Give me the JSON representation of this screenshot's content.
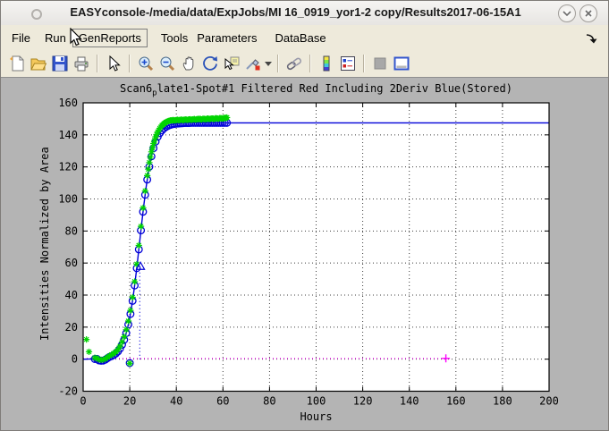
{
  "window": {
    "title": "EASYconsole-/media/data/ExpJobs/MI 16_0919_yor1-2 copy/Results2017-06-15A1",
    "controls": [
      "shade-button",
      "close-button"
    ]
  },
  "menu": {
    "items": [
      {
        "label": "File"
      },
      {
        "label": "Run"
      },
      {
        "label": "GenReports"
      },
      {
        "label": "Tools"
      },
      {
        "label": "Parameters"
      },
      {
        "label": "DataBase"
      }
    ],
    "active_item": "GenReports",
    "overflow_icon": "dock-arrow-icon"
  },
  "toolbar": {
    "icons": [
      "new-figure-icon",
      "open-file-icon",
      "save-icon",
      "print-icon",
      "pointer-icon",
      "zoom-in-icon",
      "zoom-out-icon",
      "pan-icon",
      "rotate-3d-icon",
      "data-cursor-icon",
      "brush-icon",
      "brush-dropdown-caret",
      "link-plots-icon",
      "colorbar-icon",
      "legend-icon",
      "hide-plot-tools-icon",
      "show-plot-tools-icon"
    ]
  },
  "figure": {
    "title_prefix": "Scan6",
    "title_sub": "p",
    "title_rest": "late1-Spot#1 Filtered Red Including 2Deriv Blue(Stored)"
  },
  "chart_data": {
    "type": "line",
    "title": "Scan6_plate1-Spot#1 Filtered Red Including 2Deriv Blue(Stored)",
    "xlabel": "Hours",
    "ylabel": "Intensities Normalized by Area",
    "xlim": [
      0,
      200
    ],
    "ylim": [
      -20,
      160
    ],
    "xticks": [
      0,
      20,
      40,
      60,
      80,
      100,
      120,
      140,
      160,
      180,
      200
    ],
    "yticks": [
      -20,
      0,
      20,
      40,
      60,
      80,
      100,
      120,
      140,
      160
    ],
    "grid": true,
    "legend_position": "none",
    "colors": {
      "fit": "#0000d8",
      "stars": "#00d400",
      "baseline": "#ff00ff",
      "grid": "#3c3c3c"
    },
    "series": [
      {
        "name": "baseline",
        "type": "line",
        "style": "dotted",
        "color": "#ff00ff",
        "width": 1.2,
        "points": [
          [
            0,
            0.5
          ],
          [
            155.7,
            0.5
          ]
        ]
      },
      {
        "name": "baseline-end",
        "type": "scatter",
        "marker": "plus",
        "color": "#ff00ff",
        "points": [
          [
            155.7,
            0.5
          ]
        ]
      },
      {
        "name": "inflection-vline",
        "type": "line",
        "style": "dotted",
        "color": "#0000d8",
        "width": 1.2,
        "points": [
          [
            24.3,
            0
          ],
          [
            24.3,
            57.5
          ]
        ]
      },
      {
        "name": "fit-line",
        "type": "line",
        "style": "solid",
        "color": "#0000d8",
        "width": 1.4,
        "points": [
          [
            0,
            0
          ],
          [
            6,
            0.2
          ],
          [
            9,
            0.6
          ],
          [
            11,
            1.2
          ],
          [
            13,
            2.5
          ],
          [
            15,
            5
          ],
          [
            16,
            7.1
          ],
          [
            17,
            9.9
          ],
          [
            18,
            13.8
          ],
          [
            19,
            19
          ],
          [
            20,
            25.9
          ],
          [
            21,
            34.5
          ],
          [
            22,
            44.8
          ],
          [
            23,
            56.8
          ],
          [
            24,
            69.8
          ],
          [
            25,
            83
          ],
          [
            26,
            95.6
          ],
          [
            27,
            107
          ],
          [
            28,
            116.7
          ],
          [
            29,
            124.6
          ],
          [
            30,
            130.7
          ],
          [
            31,
            135.4
          ],
          [
            32,
            138.8
          ],
          [
            33,
            141.3
          ],
          [
            34,
            143.1
          ],
          [
            35,
            144.4
          ],
          [
            36,
            145.3
          ],
          [
            37,
            146
          ],
          [
            38,
            146.5
          ],
          [
            40,
            147
          ],
          [
            42,
            147.3
          ],
          [
            45,
            147.4
          ],
          [
            50,
            147.5
          ],
          [
            200,
            147.5
          ]
        ]
      },
      {
        "name": "fit-circles",
        "type": "scatter",
        "marker": "circle",
        "color": "#0000d8",
        "points": [
          [
            5,
            0.1
          ],
          [
            5.9,
            0.2
          ],
          [
            6.8,
            -0.8
          ],
          [
            7.7,
            -1
          ],
          [
            8.6,
            -0.9
          ],
          [
            9.5,
            -0.3
          ],
          [
            10.4,
            0.6
          ],
          [
            11.3,
            1.4
          ],
          [
            12.2,
            1.9
          ],
          [
            13.1,
            2.6
          ],
          [
            14,
            3.5
          ],
          [
            14.9,
            4.8
          ],
          [
            15.8,
            6.6
          ],
          [
            16.7,
            9
          ],
          [
            17.6,
            12.1
          ],
          [
            18.5,
            16.3
          ],
          [
            19.4,
            21.6
          ],
          [
            20,
            -2.4
          ],
          [
            20.3,
            28.2
          ],
          [
            21.2,
            36.4
          ],
          [
            22.1,
            46
          ],
          [
            23,
            56.8
          ],
          [
            23.9,
            68.5
          ],
          [
            24.8,
            80.4
          ],
          [
            25.7,
            92
          ],
          [
            26.6,
            102.6
          ],
          [
            27.5,
            112.1
          ],
          [
            28.4,
            120.1
          ],
          [
            29.3,
            126.6
          ],
          [
            30.2,
            131.7
          ],
          [
            31.1,
            135.8
          ],
          [
            32,
            138.8
          ],
          [
            32.9,
            141.1
          ],
          [
            33.8,
            142.8
          ],
          [
            34.7,
            144.1
          ],
          [
            35.6,
            145
          ],
          [
            36.5,
            145.7
          ],
          [
            37.4,
            146.2
          ],
          [
            38.3,
            146.6
          ],
          [
            39.2,
            146.8
          ],
          [
            40.1,
            147
          ],
          [
            41,
            147.1
          ],
          [
            41.9,
            147.2
          ],
          [
            42.8,
            147.3
          ],
          [
            43.7,
            147.4
          ],
          [
            44.6,
            147.4
          ],
          [
            45.5,
            147.4
          ],
          [
            46.4,
            147.5
          ],
          [
            47.3,
            147.5
          ],
          [
            48.2,
            147.5
          ],
          [
            49.1,
            147.5
          ],
          [
            50,
            147.5
          ],
          [
            50.9,
            147.5
          ],
          [
            51.8,
            147.5
          ],
          [
            52.7,
            147.5
          ],
          [
            53.6,
            147.5
          ],
          [
            54.5,
            147.5
          ],
          [
            55.4,
            147.5
          ],
          [
            56.3,
            147.5
          ],
          [
            57.2,
            147.5
          ],
          [
            58.1,
            147.5
          ],
          [
            59,
            147.5
          ],
          [
            59.9,
            147.5
          ],
          [
            60.8,
            147.5
          ],
          [
            61.7,
            147.5
          ]
        ]
      },
      {
        "name": "filtered-data-stars",
        "type": "scatter",
        "marker": "asterisk",
        "color": "#00d400",
        "points": [
          [
            1.4,
            12.3
          ],
          [
            2.5,
            4.6
          ],
          [
            5,
            0.9
          ],
          [
            5.9,
            0.6
          ],
          [
            6.8,
            -0.2
          ],
          [
            7.7,
            -0.4
          ],
          [
            8.6,
            -0.3
          ],
          [
            9.5,
            0.2
          ],
          [
            10.4,
            1.2
          ],
          [
            11.3,
            2.1
          ],
          [
            12.2,
            2.8
          ],
          [
            13.1,
            3.6
          ],
          [
            14,
            4.6
          ],
          [
            14.9,
            6
          ],
          [
            15.8,
            8.1
          ],
          [
            16.7,
            10.8
          ],
          [
            17.6,
            14
          ],
          [
            18.5,
            18.4
          ],
          [
            19.4,
            23.8
          ],
          [
            20,
            -2.6
          ],
          [
            20.3,
            30.4
          ],
          [
            21.2,
            38.6
          ],
          [
            22.1,
            48.4
          ],
          [
            23,
            59.3
          ],
          [
            23.9,
            71
          ],
          [
            24.8,
            82.9
          ],
          [
            25.7,
            94.4
          ],
          [
            26.6,
            105
          ],
          [
            27.5,
            114.6
          ],
          [
            28.4,
            122.7
          ],
          [
            29.3,
            129.4
          ],
          [
            30.2,
            134.6
          ],
          [
            31.1,
            138.8
          ],
          [
            32,
            141.9
          ],
          [
            32.9,
            144.1
          ],
          [
            33.8,
            145.9
          ],
          [
            34.7,
            147.1
          ],
          [
            35.6,
            148
          ],
          [
            36.5,
            148.6
          ],
          [
            37.4,
            149
          ],
          [
            38.3,
            149.1
          ],
          [
            39.2,
            149
          ],
          [
            40.1,
            149.3
          ],
          [
            41,
            149.1
          ],
          [
            41.9,
            149.4
          ],
          [
            42.8,
            149.2
          ],
          [
            43.7,
            149.5
          ],
          [
            44.6,
            149.3
          ],
          [
            45.5,
            149.6
          ],
          [
            46.4,
            149.4
          ],
          [
            47.3,
            149.7
          ],
          [
            48.2,
            149.5
          ],
          [
            49.1,
            149.8
          ],
          [
            50,
            149.9
          ],
          [
            50.9,
            149.6
          ],
          [
            51.8,
            150
          ],
          [
            52.7,
            149.7
          ],
          [
            53.6,
            150.1
          ],
          [
            54.5,
            149.8
          ],
          [
            55.4,
            150.2
          ],
          [
            56.3,
            149.9
          ],
          [
            57.2,
            150.3
          ],
          [
            58.1,
            150
          ],
          [
            59,
            150.4
          ],
          [
            59.9,
            150.1
          ],
          [
            60.8,
            150.5
          ],
          [
            61.7,
            150.8
          ],
          [
            27.95,
            118.6
          ],
          [
            28.85,
            126.2
          ],
          [
            29.75,
            132
          ],
          [
            30.65,
            136.6
          ],
          [
            31.55,
            140.3
          ],
          [
            32.45,
            142.9
          ],
          [
            33.35,
            144.9
          ],
          [
            34.25,
            146.4
          ],
          [
            35.15,
            147.5
          ],
          [
            36.05,
            148.2
          ],
          [
            36.95,
            148.8
          ],
          [
            37.85,
            149
          ],
          [
            38.75,
            149.2
          ],
          [
            39.65,
            149.1
          ],
          [
            40.55,
            149.4
          ],
          [
            41.45,
            149.3
          ],
          [
            42.35,
            149.5
          ],
          [
            43.25,
            149.4
          ],
          [
            44.15,
            149.6
          ],
          [
            45.05,
            149.5
          ],
          [
            45.95,
            149.7
          ],
          [
            46.85,
            149.6
          ],
          [
            47.75,
            149.8
          ],
          [
            48.65,
            149.7
          ],
          [
            49.55,
            149.9
          ],
          [
            50.45,
            149.8
          ],
          [
            51.35,
            150
          ],
          [
            52.25,
            149.9
          ],
          [
            53.15,
            150.1
          ],
          [
            54.05,
            150
          ],
          [
            54.95,
            150.2
          ],
          [
            55.85,
            150.1
          ],
          [
            56.75,
            150.3
          ],
          [
            57.65,
            150.2
          ],
          [
            58.55,
            150.4
          ],
          [
            59.45,
            150.3
          ],
          [
            60.35,
            150.5
          ],
          [
            61.25,
            150.6
          ]
        ]
      },
      {
        "name": "inflection-marker",
        "type": "scatter",
        "marker": "triangle",
        "color": "#0000d8",
        "points": [
          [
            24.6,
            58
          ]
        ]
      }
    ]
  }
}
